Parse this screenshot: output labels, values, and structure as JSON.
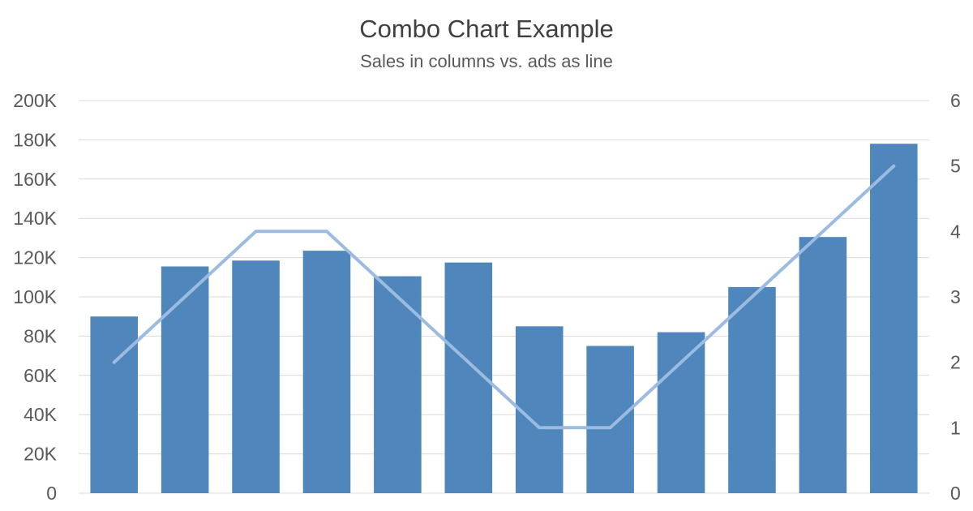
{
  "chart_data": {
    "type": "bar",
    "title": "Combo Chart Example",
    "subtitle": "Sales in columns vs. ads as line",
    "categories": [
      "",
      "",
      "",
      "",
      "",
      "",
      "",
      "",
      "",
      "",
      "",
      ""
    ],
    "series": [
      {
        "kind": "column",
        "axis": "left",
        "color": "#4f87bc",
        "values": [
          90000,
          115500,
          118500,
          123500,
          110500,
          117500,
          85000,
          75000,
          82000,
          105000,
          130500,
          178000
        ]
      },
      {
        "kind": "line",
        "axis": "right",
        "color": "#9bbbe0",
        "values": [
          2,
          3,
          4,
          4,
          3,
          2,
          1,
          1,
          2,
          3,
          4,
          5
        ]
      }
    ],
    "y_left": {
      "min": 0,
      "max": 200000,
      "ticks": [
        "0",
        "20K",
        "40K",
        "60K",
        "80K",
        "100K",
        "120K",
        "140K",
        "160K",
        "180K",
        "200K"
      ]
    },
    "y_right": {
      "min": 0,
      "max": 6,
      "ticks": [
        "0",
        "1",
        "2",
        "3",
        "4",
        "5",
        "6"
      ]
    },
    "grid": true,
    "legend": "none",
    "colors": {
      "gridline": "#d9d9d9",
      "tick_text": "#595959",
      "title_text": "#404040"
    }
  }
}
